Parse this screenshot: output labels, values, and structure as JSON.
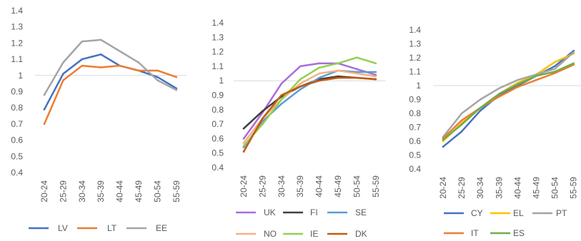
{
  "chart_data": [
    {
      "type": "line",
      "categories": [
        "20-24",
        "25-29",
        "30-34",
        "35-39",
        "40-44",
        "45-49",
        "50-54",
        "55-59"
      ],
      "yticks": [
        "0.4",
        "0.5",
        "0.6",
        "0.7",
        "0.8",
        "0.9",
        "1",
        "1.1",
        "1.2",
        "1.3",
        "1.4"
      ],
      "ylim": [
        0.4,
        1.4
      ],
      "reference_line": 1,
      "legend_position": "bottom",
      "series": [
        {
          "name": "LV",
          "color": "#4472C4",
          "values": [
            0.79,
            1.01,
            1.1,
            1.13,
            1.06,
            1.03,
            0.99,
            0.92
          ]
        },
        {
          "name": "LT",
          "color": "#ED7D31",
          "values": [
            0.7,
            0.97,
            1.06,
            1.05,
            1.06,
            1.03,
            1.03,
            0.99
          ]
        },
        {
          "name": "EE",
          "color": "#A5A5A5",
          "values": [
            0.88,
            1.08,
            1.21,
            1.22,
            1.15,
            1.08,
            0.97,
            0.91
          ]
        }
      ]
    },
    {
      "type": "line",
      "categories": [
        "20-24",
        "25-29",
        "30-34",
        "35-39",
        "40-44",
        "45-49",
        "50-54",
        "55-59"
      ],
      "yticks": [
        "0.4",
        "0.5",
        "0.6",
        "0.7",
        "0.8",
        "0.9",
        "1",
        "1.1",
        "1.2",
        "1.3",
        "1.4"
      ],
      "ylim": [
        0.4,
        1.4
      ],
      "reference_line": 1,
      "legend_position": "bottom",
      "series": [
        {
          "name": "UK",
          "color": "#A86ED9",
          "values": [
            0.6,
            0.78,
            0.98,
            1.1,
            1.12,
            1.12,
            1.08,
            1.04
          ]
        },
        {
          "name": "FI",
          "color": "#404040",
          "values": [
            0.67,
            0.79,
            0.89,
            0.96,
            1.01,
            1.03,
            1.02,
            1.01
          ]
        },
        {
          "name": "SE",
          "color": "#5B9BD5",
          "values": [
            0.54,
            0.72,
            0.84,
            0.94,
            1.02,
            1.07,
            1.06,
            1.06
          ]
        },
        {
          "name": "NO",
          "color": "#F4B183",
          "values": [
            0.57,
            0.74,
            0.87,
            0.98,
            1.05,
            1.07,
            1.05,
            1.03
          ]
        },
        {
          "name": "IE",
          "color": "#92D050",
          "values": [
            0.55,
            0.7,
            0.87,
            1.01,
            1.09,
            1.12,
            1.16,
            1.12
          ]
        },
        {
          "name": "DK",
          "color": "#C55A11",
          "values": [
            0.51,
            0.74,
            0.9,
            0.96,
            1.0,
            1.02,
            1.02,
            1.01
          ]
        }
      ]
    },
    {
      "type": "line",
      "categories": [
        "20-24",
        "25-29",
        "30-34",
        "35-39",
        "40-44",
        "45-49",
        "50-54",
        "55-59"
      ],
      "yticks": [
        "0.4",
        "0.5",
        "0.6",
        "0.7",
        "0.8",
        "0.9",
        "1",
        "1.1",
        "1.2",
        "1.3",
        "1.4"
      ],
      "ylim": [
        0.4,
        1.4
      ],
      "reference_line": 1,
      "legend_position": "bottom",
      "series": [
        {
          "name": "CY",
          "color": "#4472C4",
          "values": [
            0.56,
            0.67,
            0.82,
            0.93,
            1.0,
            1.07,
            1.14,
            1.25
          ]
        },
        {
          "name": "EL",
          "color": "#FFC000",
          "values": [
            0.6,
            0.73,
            0.84,
            0.94,
            1.02,
            1.08,
            1.17,
            1.23
          ]
        },
        {
          "name": "PT",
          "color": "#A5A5A5",
          "values": [
            0.63,
            0.8,
            0.9,
            0.98,
            1.04,
            1.08,
            1.12,
            1.24
          ]
        },
        {
          "name": "IT",
          "color": "#ED7D31",
          "values": [
            0.62,
            0.75,
            0.84,
            0.92,
            0.99,
            1.04,
            1.09,
            1.15
          ]
        },
        {
          "name": "ES",
          "color": "#70AD47",
          "values": [
            0.61,
            0.72,
            0.84,
            0.94,
            1.01,
            1.07,
            1.1,
            1.16
          ]
        }
      ]
    }
  ]
}
